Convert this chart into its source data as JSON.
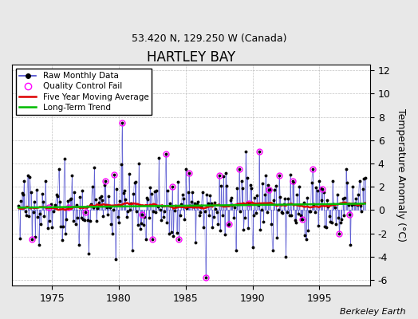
{
  "title": "HARTLEY BAY",
  "subtitle": "53.420 N, 129.250 W (Canada)",
  "ylabel": "Temperature Anomaly (°C)",
  "attribution": "Berkeley Earth",
  "xlim": [
    1972.0,
    1998.8
  ],
  "ylim": [
    -6.5,
    12.5
  ],
  "yticks": [
    -6,
    -4,
    -2,
    0,
    2,
    4,
    6,
    8,
    10,
    12
  ],
  "xticks": [
    1975,
    1980,
    1985,
    1990,
    1995
  ],
  "background_color": "#e8e8e8",
  "plot_bg_color": "#ffffff",
  "raw_color": "#4444cc",
  "ma_color": "#dd0000",
  "trend_color": "#00bb00",
  "qc_color": "#ff00ff",
  "title_fontsize": 12,
  "subtitle_fontsize": 9,
  "seed": 17
}
